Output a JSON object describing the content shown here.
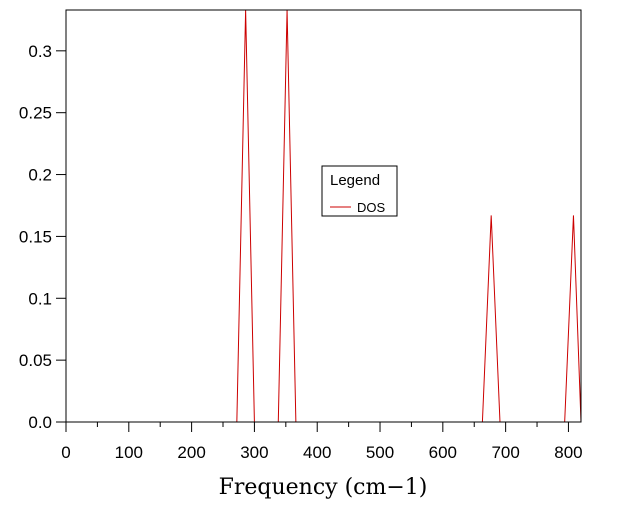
{
  "chart_data": {
    "type": "line",
    "title": "",
    "xlabel": "Frequency (cm−1)",
    "ylabel": "",
    "xlim": [
      0,
      820
    ],
    "ylim": [
      0,
      0.333
    ],
    "xticks": [
      0,
      100,
      200,
      300,
      400,
      500,
      600,
      700,
      800
    ],
    "xtick_labels": [
      "0",
      "100",
      "200",
      "300",
      "400",
      "500",
      "600",
      "700",
      "800"
    ],
    "yticks": [
      0,
      0.05,
      0.1,
      0.15,
      0.2,
      0.25,
      0.3
    ],
    "ytick_labels": [
      "0.0",
      "0.05",
      "0.1",
      "0.15",
      "0.2",
      "0.25",
      "0.3"
    ],
    "grid": false,
    "legend": {
      "title": "Legend",
      "placement": "center",
      "entries": [
        "DOS"
      ]
    },
    "series": [
      {
        "name": "DOS",
        "color": "#cc0000",
        "x": [
          0,
          272,
          286,
          300,
          338,
          352,
          366,
          663,
          677,
          691,
          794,
          808,
          820
        ],
        "y": [
          0,
          0,
          0.333,
          0,
          0,
          0.333,
          0,
          0,
          0.167,
          0,
          0,
          0.167,
          0
        ]
      }
    ]
  }
}
